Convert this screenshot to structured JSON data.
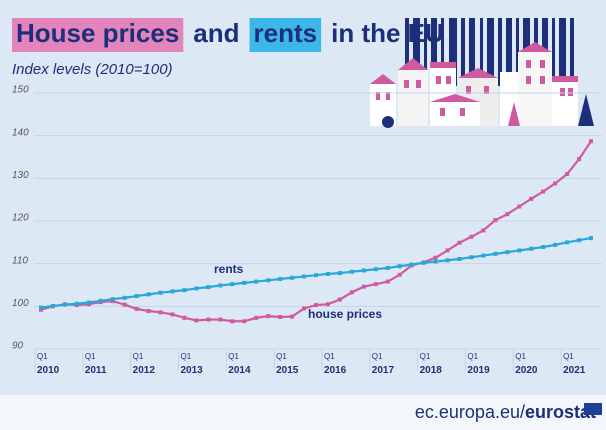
{
  "chart_data": {
    "type": "line",
    "title_segments": [
      "House prices",
      "and",
      "rents",
      "in the EU"
    ],
    "subtitle": "Index levels (2010=100)",
    "source_segments": [
      "ec.europa.eu/",
      "eurostat"
    ],
    "categories": [
      "Q1 2010",
      null,
      null,
      null,
      "Q1 2011",
      null,
      null,
      null,
      "Q1 2012",
      null,
      null,
      null,
      "Q1 2013",
      null,
      null,
      null,
      "Q1 2014",
      null,
      null,
      null,
      "Q1 2015",
      null,
      null,
      null,
      "Q1 2016",
      null,
      null,
      null,
      "Q1 2017",
      null,
      null,
      null,
      "Q1 2018",
      null,
      null,
      null,
      "Q1 2019",
      null,
      null,
      null,
      "Q1 2020",
      null,
      null,
      null,
      "Q1 2021",
      null,
      null
    ],
    "series": [
      {
        "name": "house prices",
        "color": "#cf5aa0",
        "values": [
          99.2,
          100.0,
          100.5,
          100.3,
          100.5,
          101.0,
          101.2,
          100.4,
          99.4,
          98.9,
          98.6,
          98.1,
          97.3,
          96.7,
          96.9,
          96.9,
          96.5,
          96.5,
          97.3,
          97.7,
          97.5,
          97.6,
          99.5,
          100.3,
          100.5,
          101.6,
          103.3,
          104.6,
          105.2,
          105.8,
          107.4,
          109.6,
          110.3,
          111.4,
          113.1,
          114.9,
          116.3,
          117.8,
          120.2,
          121.6,
          123.4,
          125.2,
          126.9,
          128.8,
          131.0,
          134.5,
          138.7
        ]
      },
      {
        "name": "rents",
        "color": "#2aa7d8",
        "values": [
          99.7,
          100.1,
          100.4,
          100.6,
          100.9,
          101.3,
          101.7,
          102.0,
          102.4,
          102.8,
          103.2,
          103.5,
          103.8,
          104.2,
          104.5,
          104.9,
          105.2,
          105.5,
          105.8,
          106.1,
          106.4,
          106.7,
          107.0,
          107.3,
          107.6,
          107.8,
          108.1,
          108.4,
          108.7,
          109.0,
          109.4,
          109.8,
          110.2,
          110.5,
          110.8,
          111.1,
          111.5,
          111.9,
          112.3,
          112.7,
          113.1,
          113.5,
          113.9,
          114.4,
          115.0,
          115.5,
          116.0
        ]
      }
    ],
    "ylim": [
      90,
      150
    ],
    "yticks": [
      90,
      100,
      110,
      120,
      130,
      140,
      150
    ],
    "grid": true
  }
}
